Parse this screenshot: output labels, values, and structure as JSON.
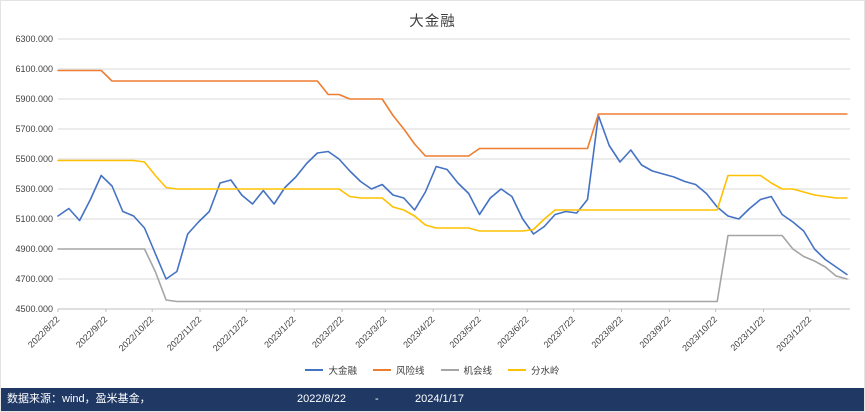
{
  "chart_data": {
    "type": "line",
    "title": "大金融",
    "grid": "horizontal",
    "legend_position": "bottom",
    "y_axis": {
      "min": 4500,
      "max": 6300,
      "step": 200,
      "tick_labels": [
        "4500.000",
        "4700.000",
        "4900.000",
        "5100.000",
        "5300.000",
        "5500.000",
        "5700.000",
        "5900.000",
        "6100.000",
        "6300.000"
      ]
    },
    "x_total_days": 513,
    "x_ticks": [
      {
        "label": "2022/8/22",
        "day": 0
      },
      {
        "label": "2022/9/22",
        "day": 31
      },
      {
        "label": "2022/10/22",
        "day": 61
      },
      {
        "label": "2022/11/22",
        "day": 92
      },
      {
        "label": "2022/12/22",
        "day": 122
      },
      {
        "label": "2023/1/22",
        "day": 153
      },
      {
        "label": "2023/2/22",
        "day": 184
      },
      {
        "label": "2023/3/22",
        "day": 212
      },
      {
        "label": "2023/4/22",
        "day": 243
      },
      {
        "label": "2023/5/22",
        "day": 273
      },
      {
        "label": "2023/6/22",
        "day": 304
      },
      {
        "label": "2023/7/22",
        "day": 334
      },
      {
        "label": "2023/8/22",
        "day": 365
      },
      {
        "label": "2023/9/22",
        "day": 396
      },
      {
        "label": "2023/10/22",
        "day": 426
      },
      {
        "label": "2023/11/22",
        "day": 457
      },
      {
        "label": "2023/12/22",
        "day": 487
      }
    ],
    "series_days": [
      0,
      7,
      14,
      21,
      28,
      35,
      42,
      49,
      56,
      63,
      70,
      77,
      84,
      91,
      98,
      105,
      112,
      119,
      126,
      133,
      140,
      147,
      154,
      161,
      168,
      175,
      182,
      189,
      196,
      203,
      210,
      217,
      224,
      231,
      238,
      245,
      252,
      259,
      266,
      273,
      280,
      287,
      294,
      301,
      308,
      315,
      322,
      329,
      336,
      343,
      350,
      357,
      364,
      371,
      378,
      385,
      392,
      399,
      406,
      413,
      420,
      427,
      434,
      441,
      448,
      455,
      462,
      469,
      476,
      483,
      490,
      497,
      504,
      511
    ],
    "series": [
      {
        "name": "大金融",
        "color": "#4472C4",
        "values": [
          5120,
          5170,
          5090,
          5230,
          5390,
          5320,
          5150,
          5120,
          5040,
          4870,
          4700,
          4750,
          5000,
          5080,
          5150,
          5340,
          5360,
          5260,
          5200,
          5290,
          5200,
          5310,
          5380,
          5470,
          5540,
          5550,
          5500,
          5420,
          5350,
          5300,
          5330,
          5260,
          5240,
          5160,
          5280,
          5450,
          5430,
          5340,
          5270,
          5130,
          5240,
          5300,
          5250,
          5100,
          5000,
          5050,
          5130,
          5150,
          5140,
          5230,
          5790,
          5590,
          5480,
          5560,
          5460,
          5420,
          5400,
          5380,
          5350,
          5330,
          5270,
          5180,
          5120,
          5100,
          5170,
          5230,
          5250,
          5130,
          5080,
          5020,
          4900,
          4830,
          4780,
          4730
        ]
      },
      {
        "name": "风险线",
        "color": "#ED7D31",
        "values": [
          6090,
          6090,
          6090,
          6090,
          6090,
          6020,
          6020,
          6020,
          6020,
          6020,
          6020,
          6020,
          6020,
          6020,
          6020,
          6020,
          6020,
          6020,
          6020,
          6020,
          6020,
          6020,
          6020,
          6020,
          6020,
          5930,
          5930,
          5900,
          5900,
          5900,
          5900,
          5790,
          5700,
          5600,
          5520,
          5520,
          5520,
          5520,
          5520,
          5570,
          5570,
          5570,
          5570,
          5570,
          5570,
          5570,
          5570,
          5570,
          5570,
          5570,
          5800,
          5800,
          5800,
          5800,
          5800,
          5800,
          5800,
          5800,
          5800,
          5800,
          5800,
          5800,
          5800,
          5800,
          5800,
          5800,
          5800,
          5800,
          5800,
          5800,
          5800,
          5800,
          5800,
          5800
        ]
      },
      {
        "name": "机会线",
        "color": "#A5A5A5",
        "values": [
          4900,
          4900,
          4900,
          4900,
          4900,
          4900,
          4900,
          4900,
          4900,
          4750,
          4560,
          4550,
          4550,
          4550,
          4550,
          4550,
          4550,
          4550,
          4550,
          4550,
          4550,
          4550,
          4550,
          4550,
          4550,
          4550,
          4550,
          4550,
          4550,
          4550,
          4550,
          4550,
          4550,
          4550,
          4550,
          4550,
          4550,
          4550,
          4550,
          4550,
          4550,
          4550,
          4550,
          4550,
          4550,
          4550,
          4550,
          4550,
          4550,
          4550,
          4550,
          4550,
          4550,
          4550,
          4550,
          4550,
          4550,
          4550,
          4550,
          4550,
          4550,
          4550,
          4990,
          4990,
          4990,
          4990,
          4990,
          4990,
          4900,
          4850,
          4820,
          4780,
          4720,
          4700
        ]
      },
      {
        "name": "分水岭",
        "color": "#FFC000",
        "values": [
          5490,
          5490,
          5490,
          5490,
          5490,
          5490,
          5490,
          5490,
          5480,
          5390,
          5310,
          5300,
          5300,
          5300,
          5300,
          5300,
          5300,
          5300,
          5300,
          5300,
          5300,
          5300,
          5300,
          5300,
          5300,
          5300,
          5300,
          5250,
          5240,
          5240,
          5240,
          5180,
          5160,
          5120,
          5060,
          5040,
          5040,
          5040,
          5040,
          5020,
          5020,
          5020,
          5020,
          5020,
          5030,
          5100,
          5160,
          5160,
          5160,
          5160,
          5160,
          5160,
          5160,
          5160,
          5160,
          5160,
          5160,
          5160,
          5160,
          5160,
          5160,
          5160,
          5390,
          5390,
          5390,
          5390,
          5340,
          5300,
          5300,
          5280,
          5260,
          5250,
          5240,
          5240
        ]
      }
    ]
  },
  "footer": {
    "source": "数据来源：wind，盈米基金，",
    "start_date": "2022/8/22",
    "separator": "-",
    "end_date": "2024/1/17"
  },
  "colors": {
    "footer_bg": "#1F3864",
    "grid": "#D9D9D9",
    "axis_line": "#BFBFBF",
    "axis_text": "#404040",
    "series_blue": "#4472C4",
    "series_orange": "#ED7D31",
    "series_gray": "#A5A5A5",
    "series_yellow": "#FFC000"
  }
}
